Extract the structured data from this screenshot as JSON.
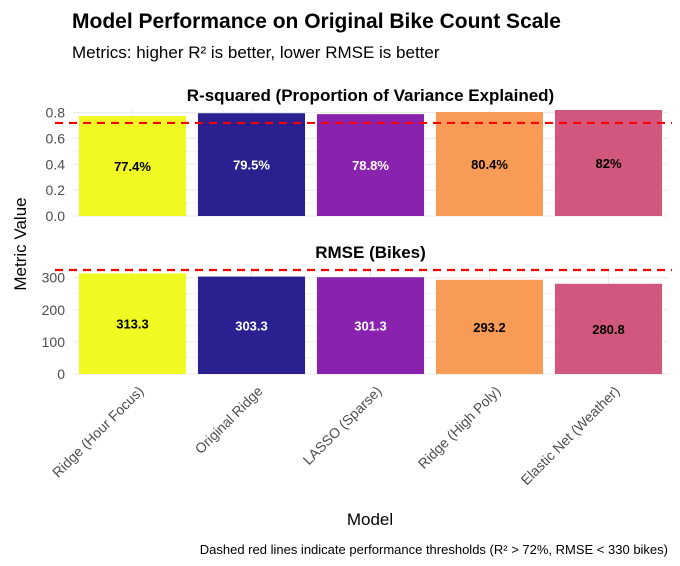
{
  "title": "Model Performance on Original Bike Count Scale",
  "subtitle": "Metrics: higher R² is better, lower RMSE is better",
  "caption": "Dashed red lines indicate performance thresholds (R² > 72%, RMSE < 330 bikes)",
  "colors": {
    "threshold": "#ff0000",
    "gridline": "#ebebeb",
    "axis_text": "#4d4d4d"
  },
  "chart_data": {
    "type": "bar",
    "xlabel": "Model",
    "ylabel": "Metric Value",
    "categories": [
      "Ridge (Hour Focus)",
      "Original Ridge",
      "LASSO (Sparse)",
      "Ridge (High Poly)",
      "Elastic Net (Weather)"
    ],
    "bar_colors": [
      "#f0f921",
      "#2a2090",
      "#8a22b0",
      "#f89b56",
      "#d1577f"
    ],
    "label_colors": [
      "#000000",
      "#ffffff",
      "#ffffff",
      "#000000",
      "#000000"
    ],
    "panels": [
      {
        "title": "R-squared (Proportion of Variance Explained)",
        "values": [
          0.774,
          0.795,
          0.788,
          0.804,
          0.82
        ],
        "labels": [
          "77.4%",
          "79.5%",
          "78.8%",
          "80.4%",
          "82%"
        ],
        "ylim": [
          0,
          0.82
        ],
        "yticks": [
          0.0,
          0.2,
          0.4,
          0.6,
          0.8
        ],
        "ytick_labels": [
          "0.0",
          "0.2",
          "0.4",
          "0.6",
          "0.8"
        ],
        "threshold": 0.72
      },
      {
        "title": "RMSE (Bikes)",
        "values": [
          313.3,
          303.3,
          301.3,
          293.2,
          280.8
        ],
        "labels": [
          "313.3",
          "303.3",
          "301.3",
          "293.2",
          "280.8"
        ],
        "ylim": [
          0,
          330
        ],
        "yticks": [
          0,
          100,
          200,
          300
        ],
        "ytick_labels": [
          "0",
          "100",
          "200",
          "300"
        ],
        "threshold": 330
      }
    ]
  }
}
